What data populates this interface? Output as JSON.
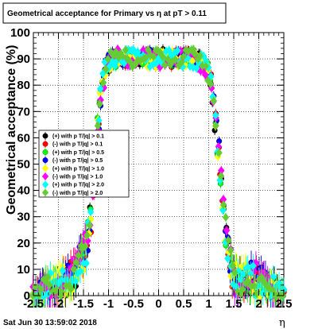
{
  "chart_data": {
    "type": "scatter",
    "title": "Geometrical acceptance for Primary vs   η at pT > 0.11",
    "xlabel": "η",
    "ylabel": "Geometrical acceptance (%)",
    "xlim": [
      -2.5,
      2.5
    ],
    "ylim": [
      0,
      100
    ],
    "x_ticks": [
      "-2.5",
      "-2",
      "-1.5",
      "-1",
      "-0.5",
      "0",
      "0.5",
      "1",
      "1.5",
      "2",
      "2.5"
    ],
    "y_ticks": [
      "0",
      "10",
      "20",
      "30",
      "40",
      "50",
      "60",
      "70",
      "80",
      "90",
      "100"
    ],
    "grid": true,
    "legend_position": "left",
    "footer": "Sat Jun 30 13:59:02 2018",
    "series": [
      {
        "name": "(+) with p T/|q| > 0.1",
        "color": "#000000",
        "marker": "circle"
      },
      {
        "name": "(-) with p T/|q| > 0.1",
        "color": "#ff0000",
        "marker": "circle"
      },
      {
        "name": "(+) with p T/|q| > 0.5",
        "color": "#00ff00",
        "marker": "circle"
      },
      {
        "name": "(-) with p T/|q| > 0.5",
        "color": "#0000ff",
        "marker": "circle"
      },
      {
        "name": "(+) with p T/|q| > 1.0",
        "color": "#ffff00",
        "marker": "diamond"
      },
      {
        "name": "(-) with p T/|q| > 1.0",
        "color": "#ff00ff",
        "marker": "diamond"
      },
      {
        "name": "(+) with p T/|q| > 2.0",
        "color": "#00ffff",
        "marker": "diamond"
      },
      {
        "name": "(-) with p T/|q| > 2.0",
        "color": "#66cc33",
        "marker": "diamond"
      }
    ],
    "points": [
      [
        -2.5,
        1
      ],
      [
        -2.45,
        2
      ],
      [
        -2.4,
        3
      ],
      [
        -2.35,
        3.5
      ],
      [
        -2.3,
        4
      ],
      [
        -2.25,
        4.5
      ],
      [
        -2.2,
        5
      ],
      [
        -2.15,
        5.5
      ],
      [
        -2.1,
        6
      ],
      [
        -2.05,
        6.5
      ],
      [
        -2.0,
        7
      ],
      [
        -1.95,
        7.5
      ],
      [
        -1.9,
        8
      ],
      [
        -1.85,
        8.5
      ],
      [
        -1.8,
        9
      ],
      [
        -1.75,
        10
      ],
      [
        -1.7,
        11
      ],
      [
        -1.65,
        12
      ],
      [
        -1.6,
        14
      ],
      [
        -1.55,
        16
      ],
      [
        -1.5,
        18
      ],
      [
        -1.45,
        21
      ],
      [
        -1.4,
        25
      ],
      [
        -1.35,
        32
      ],
      [
        -1.3,
        42
      ],
      [
        -1.25,
        55
      ],
      [
        -1.2,
        67
      ],
      [
        -1.15,
        77
      ],
      [
        -1.1,
        84
      ],
      [
        -1.05,
        88
      ],
      [
        -1.0,
        90
      ],
      [
        -0.95,
        91
      ],
      [
        -0.9,
        91.5
      ],
      [
        -0.85,
        92
      ],
      [
        -0.8,
        92
      ],
      [
        -0.75,
        92
      ],
      [
        -0.7,
        92
      ],
      [
        -0.65,
        92
      ],
      [
        -0.6,
        92
      ],
      [
        -0.55,
        92
      ],
      [
        -0.5,
        92
      ],
      [
        -0.45,
        92
      ],
      [
        -0.4,
        92
      ],
      [
        -0.35,
        92
      ],
      [
        -0.3,
        92
      ],
      [
        -0.25,
        92
      ],
      [
        -0.2,
        92
      ],
      [
        -0.15,
        92
      ],
      [
        -0.1,
        92
      ],
      [
        -0.05,
        92
      ],
      [
        0.0,
        92
      ],
      [
        0.05,
        92
      ],
      [
        0.1,
        92
      ],
      [
        0.15,
        92
      ],
      [
        0.2,
        92
      ],
      [
        0.25,
        92
      ],
      [
        0.3,
        92
      ],
      [
        0.35,
        92
      ],
      [
        0.4,
        92
      ],
      [
        0.45,
        92
      ],
      [
        0.5,
        92
      ],
      [
        0.55,
        92
      ],
      [
        0.6,
        92
      ],
      [
        0.65,
        92
      ],
      [
        0.7,
        92
      ],
      [
        0.75,
        91.5
      ],
      [
        0.8,
        91
      ],
      [
        0.85,
        90.5
      ],
      [
        0.9,
        90
      ],
      [
        0.95,
        89
      ],
      [
        1.0,
        87
      ],
      [
        1.05,
        84
      ],
      [
        1.1,
        77
      ],
      [
        1.15,
        68
      ],
      [
        1.2,
        58
      ],
      [
        1.25,
        47
      ],
      [
        1.3,
        36
      ],
      [
        1.35,
        27
      ],
      [
        1.4,
        20
      ],
      [
        1.45,
        15
      ],
      [
        1.5,
        11
      ],
      [
        1.55,
        9
      ],
      [
        1.6,
        8
      ],
      [
        1.65,
        8
      ],
      [
        1.7,
        8
      ],
      [
        1.75,
        9
      ],
      [
        1.8,
        10
      ],
      [
        1.85,
        10
      ],
      [
        1.9,
        10
      ],
      [
        1.95,
        9.5
      ],
      [
        2.0,
        9
      ],
      [
        2.05,
        8.5
      ],
      [
        2.1,
        8
      ],
      [
        2.15,
        7
      ],
      [
        2.2,
        6
      ],
      [
        2.25,
        5
      ],
      [
        2.3,
        4
      ],
      [
        2.35,
        3
      ],
      [
        2.4,
        2
      ],
      [
        2.45,
        1.5
      ],
      [
        2.5,
        1
      ]
    ]
  }
}
